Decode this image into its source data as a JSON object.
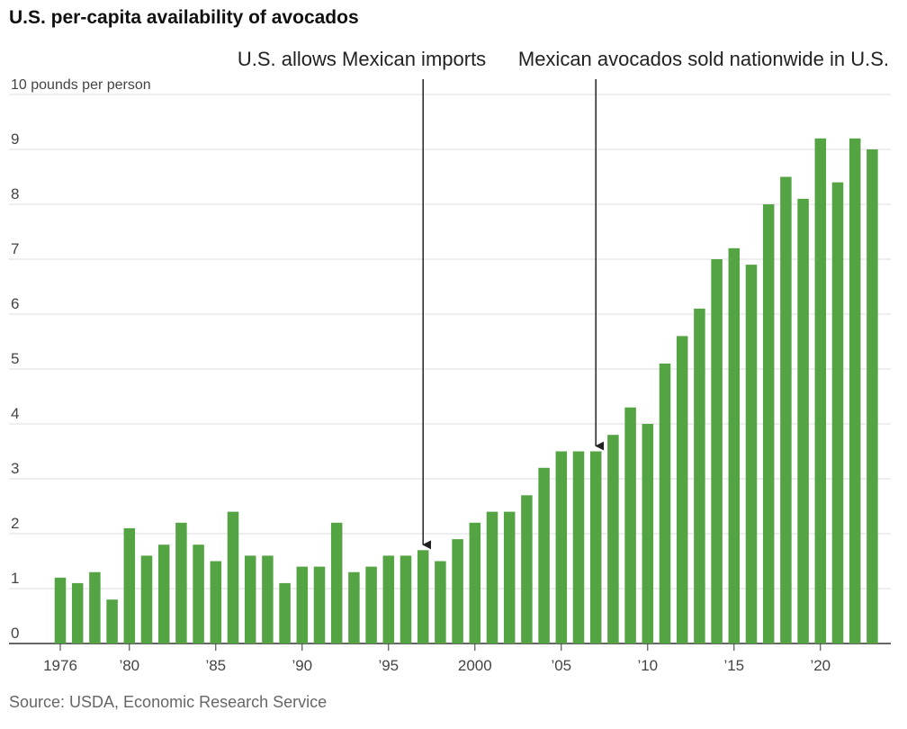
{
  "title": "U.S. per-capita availability of avocados",
  "source": "Source: USDA, Economic Research Service",
  "chart_data": {
    "type": "bar",
    "title": "U.S. per-capita availability of avocados",
    "ylabel": "10 pounds per person",
    "ylim": [
      0,
      10
    ],
    "yticks": [
      0,
      1,
      2,
      3,
      4,
      5,
      6,
      7,
      8,
      9,
      10
    ],
    "ytick_labels": [
      "0",
      "1",
      "2",
      "3",
      "4",
      "5",
      "6",
      "7",
      "8",
      "9",
      "10 pounds per person"
    ],
    "categories": [
      1976,
      1977,
      1978,
      1979,
      1980,
      1981,
      1982,
      1983,
      1984,
      1985,
      1986,
      1987,
      1988,
      1989,
      1990,
      1991,
      1992,
      1993,
      1994,
      1995,
      1996,
      1997,
      1998,
      1999,
      2000,
      2001,
      2002,
      2003,
      2004,
      2005,
      2006,
      2007,
      2008,
      2009,
      2010,
      2011,
      2012,
      2013,
      2014,
      2015,
      2016,
      2017,
      2018,
      2019,
      2020,
      2021,
      2022,
      2023
    ],
    "values": [
      1.2,
      1.1,
      1.3,
      0.8,
      2.1,
      1.6,
      1.8,
      2.2,
      1.8,
      1.5,
      2.4,
      1.6,
      1.6,
      1.1,
      1.4,
      1.4,
      2.2,
      1.3,
      1.4,
      1.6,
      1.6,
      1.7,
      1.5,
      1.9,
      2.2,
      2.4,
      2.4,
      2.7,
      3.2,
      3.5,
      3.5,
      3.5,
      3.8,
      4.3,
      4.0,
      5.1,
      5.6,
      6.1,
      7.0,
      7.2,
      6.9,
      8.0,
      8.5,
      8.1,
      9.2,
      8.4,
      9.2,
      9.0
    ],
    "xtick_labels": [
      {
        "year": 1976,
        "label": "1976"
      },
      {
        "year": 1980,
        "label": "’80"
      },
      {
        "year": 1985,
        "label": "’85"
      },
      {
        "year": 1990,
        "label": "’90"
      },
      {
        "year": 1995,
        "label": "’95"
      },
      {
        "year": 2000,
        "label": "2000"
      },
      {
        "year": 2005,
        "label": "’05"
      },
      {
        "year": 2010,
        "label": "’10"
      },
      {
        "year": 2015,
        "label": "’15"
      },
      {
        "year": 2020,
        "label": "’20"
      }
    ],
    "annotations": [
      {
        "year": 1997,
        "text": "U.S. allows Mexican imports"
      },
      {
        "year": 2007,
        "text": "Mexican avocados sold nationwide in U.S."
      }
    ],
    "bar_color": "#55a443",
    "grid": true
  }
}
